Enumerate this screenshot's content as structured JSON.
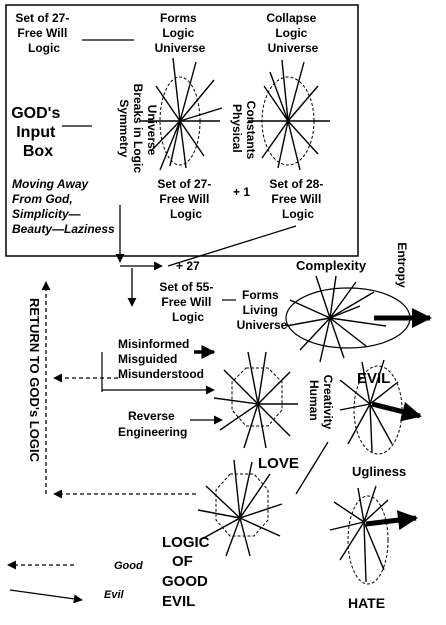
{
  "box": {
    "set27_top": [
      "Set of 27-",
      "Free Will",
      "Logic"
    ],
    "forms_logic": [
      "Forms",
      "Logic",
      "Universe"
    ],
    "collapse_logic": [
      "Collapse",
      "Logic",
      "Universe"
    ],
    "gods_input": [
      "GOD's",
      "Input",
      "Box"
    ],
    "symmetry": [
      "Symmetry",
      "Breaks in Logic",
      "Universe"
    ],
    "physical": [
      "Physical",
      "Constants"
    ],
    "moving_away": [
      "Moving Away",
      "From God,",
      "Simplicity—",
      "Beauty—Laziness"
    ],
    "set27_bottom": [
      "Set of 27-",
      "Free Will",
      "Logic"
    ],
    "plus_one": "+ 1",
    "set28": [
      "Set of 28-",
      "Free Will",
      "Logic"
    ]
  },
  "flow": {
    "plus_27": "+ 27",
    "set55": [
      "Set of 55-",
      "Free Will",
      "Logic"
    ],
    "forms_living": [
      "Forms",
      "Living",
      "Universe"
    ],
    "complexity": "Complexity",
    "entropy": "Entropy",
    "evil_caps": "EVIL",
    "return_to_god": "RETURN TO GOD's LOGIC",
    "misinformed": [
      "Misinformed",
      "Misguided",
      "Misunderstood"
    ],
    "reverse": [
      "Reverse",
      "Engineering"
    ],
    "human_creativity": [
      "Human",
      "Creativity"
    ],
    "love": "LOVE",
    "ugliness": "Ugliness",
    "logic_good_evil": [
      "LOGIC",
      "OF",
      "GOOD",
      "EVIL"
    ],
    "hate": "HATE"
  },
  "legend": {
    "good": "Good",
    "evil": "Evil"
  }
}
